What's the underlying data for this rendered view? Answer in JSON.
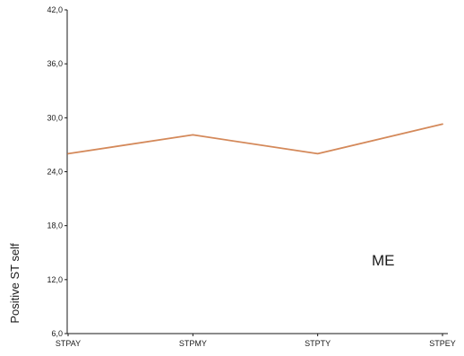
{
  "chart_data": {
    "type": "line",
    "categories": [
      "STPAY",
      "STPMY",
      "STPTY",
      "STPEY"
    ],
    "series": [
      {
        "values": [
          26.0,
          28.1,
          26.0,
          29.3
        ]
      }
    ],
    "ylabel": "Positive ST self",
    "xlabel": "",
    "ylim": [
      6.0,
      42.0
    ],
    "yticks": [
      "6,0",
      "12,0",
      "18,0",
      "24,0",
      "30,0",
      "36,0",
      "42,0"
    ],
    "annotation": "ME",
    "grid": false,
    "line_color": "#d4895a",
    "axis_color": "#1a1a1a"
  }
}
